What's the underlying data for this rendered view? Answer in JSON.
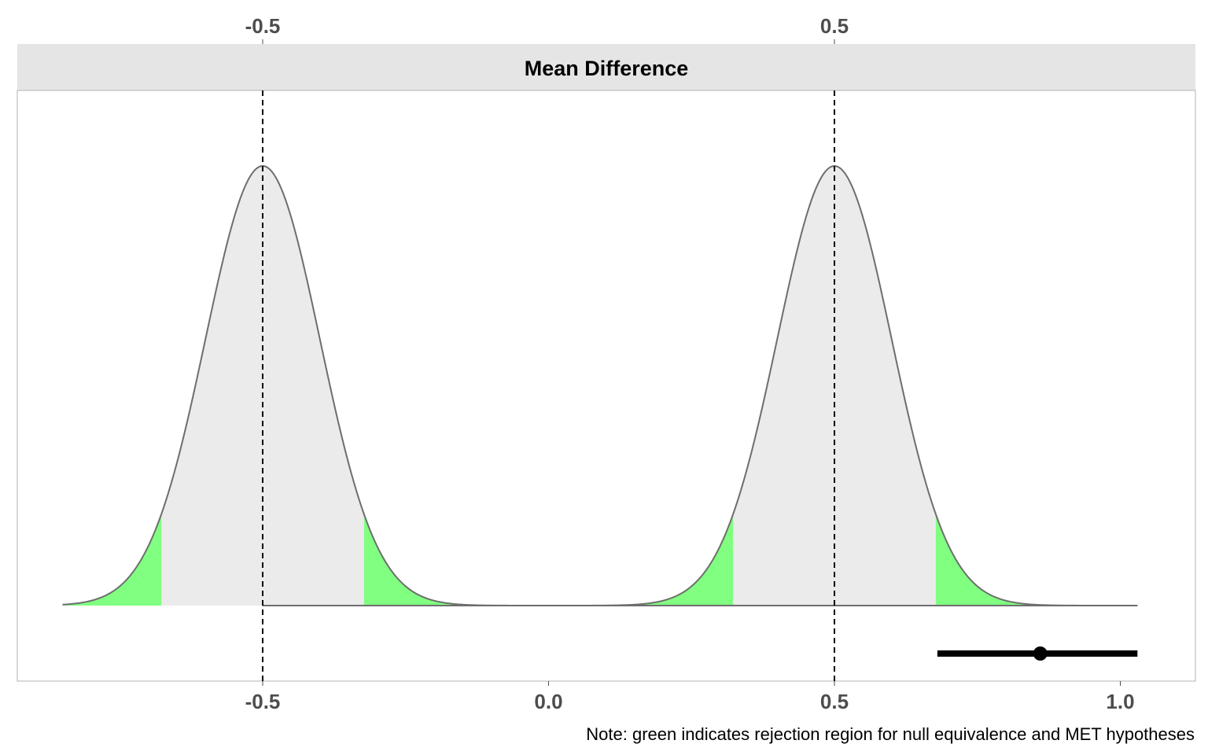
{
  "chart_data": {
    "type": "area",
    "title": "",
    "facet_label": "Mean Difference",
    "xlabel": "",
    "ylabel": "",
    "xlim": [
      -0.94,
      1.13
    ],
    "x_ticks": [
      {
        "value": -0.5,
        "label": "-0.5"
      },
      {
        "value": 0.0,
        "label": "0.0"
      },
      {
        "value": 0.5,
        "label": "0.5"
      },
      {
        "value": 1.0,
        "label": "1.0"
      }
    ],
    "top_axis_ticks": [
      {
        "value": -0.5,
        "label": "-0.5"
      },
      {
        "value": 0.5,
        "label": "0.5"
      }
    ],
    "equivalence_bounds": [
      -0.5,
      0.5
    ],
    "null_distributions": [
      {
        "center": -0.5,
        "sd": 0.1,
        "x_range": [
          -0.85,
          0.0
        ],
        "rejection_regions": [
          [
            -0.85,
            -0.6773
          ],
          [
            -0.3227,
            0.0
          ]
        ]
      },
      {
        "center": 0.5,
        "sd": 0.1,
        "x_range": [
          0.0,
          1.03
        ],
        "rejection_regions": [
          [
            0.0,
            0.3227
          ],
          [
            0.6773,
            1.03
          ]
        ]
      }
    ],
    "estimate": {
      "point": 0.86,
      "ci": [
        0.68,
        1.03
      ]
    },
    "note": "Note: green indicates rejection region for null equivalence and MET hypotheses",
    "grid": false,
    "legend": "none",
    "colors": {
      "fill": "#ebebeb",
      "rejection_fill": "#80ff80",
      "curve": "#6e6e6e",
      "strip": "#e5e5e5",
      "reference_line": "#000000",
      "estimate": "#000000",
      "panel_border": "#b3b3b3",
      "axis_text": "#4d4d4d"
    }
  }
}
